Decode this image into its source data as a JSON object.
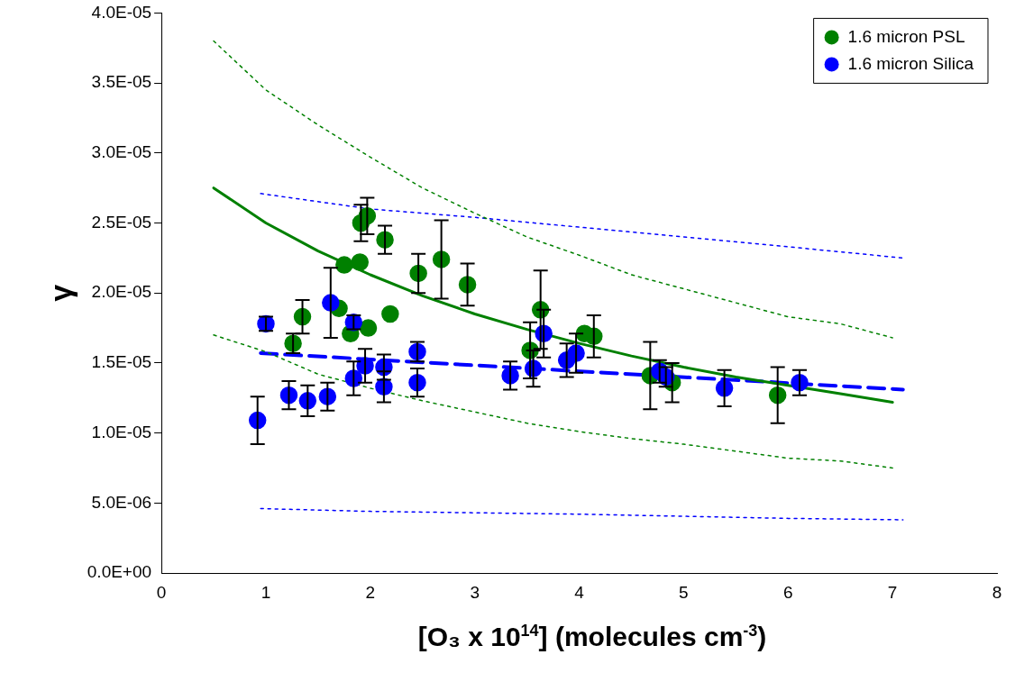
{
  "chart_data": {
    "type": "scatter",
    "xlabel": "[O₃ x 10$^{14}$] (molecules cm$^{-3}$)",
    "ylabel": "γ",
    "xlim": [
      0,
      8
    ],
    "xticks": [
      0,
      1,
      2,
      3,
      4,
      5,
      6,
      7,
      8
    ],
    "ylim": [
      0,
      4e-05
    ],
    "yticks": [
      {
        "value": 0,
        "label": "0.0E+00"
      },
      {
        "value": 5e-06,
        "label": "5.0E-06"
      },
      {
        "value": 1e-05,
        "label": "1.0E-05"
      },
      {
        "value": 1.5e-05,
        "label": "1.5E-05"
      },
      {
        "value": 2e-05,
        "label": "2.0E-05"
      },
      {
        "value": 2.5e-05,
        "label": "2.5E-05"
      },
      {
        "value": 3e-05,
        "label": "3.0E-05"
      },
      {
        "value": 3.5e-05,
        "label": "3.5E-05"
      },
      {
        "value": 4e-05,
        "label": "4.0E-05"
      }
    ],
    "grid": false,
    "legend": "top right",
    "marker": "circle",
    "series": [
      {
        "name": "1.6 micron PSL",
        "color": "#008000",
        "x": [
          1.26,
          1.35,
          1.7,
          1.75,
          1.81,
          1.9,
          1.91,
          1.97,
          1.98,
          2.14,
          2.19,
          2.46,
          2.68,
          2.93,
          3.53,
          3.63,
          4.05,
          4.14,
          4.68,
          4.89,
          5.9
        ],
        "values": [
          1.64e-05,
          1.83e-05,
          1.89e-05,
          2.2e-05,
          1.71e-05,
          2.22e-05,
          2.5e-05,
          2.55e-05,
          1.75e-05,
          2.38e-05,
          1.85e-05,
          2.14e-05,
          2.24e-05,
          2.06e-05,
          1.59e-05,
          1.88e-05,
          1.71e-05,
          1.69e-05,
          1.41e-05,
          1.36e-05,
          1.27e-05
        ],
        "errors": [
          7e-07,
          1.2e-06,
          null,
          null,
          null,
          null,
          1.3e-06,
          1.3e-06,
          null,
          1e-06,
          null,
          1.4e-06,
          2.8e-06,
          1.5e-06,
          2e-06,
          2.8e-06,
          null,
          1.5e-06,
          2.4e-06,
          1.4e-06,
          2e-06
        ]
      },
      {
        "name": "1.6 micron Silica",
        "color": "#0000ff",
        "x": [
          0.92,
          1.0,
          1.22,
          1.4,
          1.59,
          1.62,
          1.84,
          1.84,
          1.95,
          2.13,
          2.13,
          2.45,
          2.45,
          3.34,
          3.56,
          3.66,
          3.88,
          3.97,
          4.77,
          4.83,
          5.39,
          6.11
        ],
        "values": [
          1.09e-05,
          1.78e-05,
          1.27e-05,
          1.23e-05,
          1.26e-05,
          1.93e-05,
          1.79e-05,
          1.39e-05,
          1.48e-05,
          1.47e-05,
          1.33e-05,
          1.58e-05,
          1.36e-05,
          1.41e-05,
          1.46e-05,
          1.71e-05,
          1.52e-05,
          1.57e-05,
          1.44e-05,
          1.4e-05,
          1.32e-05,
          1.36e-05
        ],
        "errors": [
          1.7e-06,
          5e-07,
          1e-06,
          1.1e-06,
          1e-06,
          2.5e-06,
          5e-07,
          1.2e-06,
          1.2e-06,
          9e-07,
          1.1e-06,
          7e-07,
          1e-06,
          1e-06,
          1.3e-06,
          1.7e-06,
          1.2e-06,
          1.4e-06,
          8e-07,
          7e-07,
          1.3e-06,
          9e-07
        ]
      },
      {
        "color": "#008000",
        "type": "line",
        "marker": "none",
        "line_style": "solid",
        "x": [
          0.5,
          1,
          1.5,
          2,
          2.5,
          3,
          3.5,
          4,
          4.5,
          5,
          5.5,
          6,
          6.5,
          7
        ],
        "values": [
          2.75e-05,
          2.5e-05,
          2.3e-05,
          2.13e-05,
          1.98e-05,
          1.85e-05,
          1.74e-05,
          1.64e-05,
          1.55e-05,
          1.47e-05,
          1.4e-05,
          1.34e-05,
          1.28e-05,
          1.22e-05
        ]
      },
      {
        "color": "#008000",
        "type": "line",
        "marker": "none",
        "line_style": "dotted",
        "x": [
          0.5,
          1,
          1.5,
          2,
          2.5,
          3,
          3.5,
          4,
          4.5,
          5,
          5.5,
          6,
          6.5,
          7
        ],
        "values": [
          3.8e-05,
          3.45e-05,
          3.2e-05,
          2.97e-05,
          2.75e-05,
          2.57e-05,
          2.4e-05,
          2.27e-05,
          2.13e-05,
          2.03e-05,
          1.93e-05,
          1.83e-05,
          1.78e-05,
          1.68e-05
        ]
      },
      {
        "color": "#008000",
        "type": "line",
        "marker": "none",
        "line_style": "dotted",
        "x": [
          0.5,
          1,
          1.5,
          2,
          2.5,
          3,
          3.5,
          4,
          4.5,
          5,
          5.5,
          6,
          6.5,
          7
        ],
        "values": [
          1.7e-05,
          1.58e-05,
          1.42e-05,
          1.32e-05,
          1.23e-05,
          1.15e-05,
          1.07e-05,
          1.01e-05,
          9.6e-06,
          9.2e-06,
          8.7e-06,
          8.2e-06,
          8e-06,
          7.5e-06
        ]
      },
      {
        "color": "#0000ff",
        "type": "line",
        "marker": "none",
        "line_style": "dashed",
        "x": [
          0.95,
          7.1
        ],
        "values": [
          1.57e-05,
          1.31e-05
        ]
      },
      {
        "color": "#0000ff",
        "type": "line",
        "marker": "none",
        "line_style": "dotted",
        "x": [
          0.95,
          2,
          3,
          4,
          5,
          6,
          7.1
        ],
        "values": [
          2.71e-05,
          2.6e-05,
          2.54e-05,
          2.47e-05,
          2.4e-05,
          2.33e-05,
          2.25e-05
        ]
      },
      {
        "color": "#0000ff",
        "type": "line",
        "marker": "none",
        "line_style": "dotted",
        "x": [
          0.95,
          2,
          4,
          6,
          7.1
        ],
        "values": [
          4.6e-06,
          4.4e-06,
          4.2e-06,
          3.9e-06,
          3.8e-06
        ]
      }
    ]
  }
}
